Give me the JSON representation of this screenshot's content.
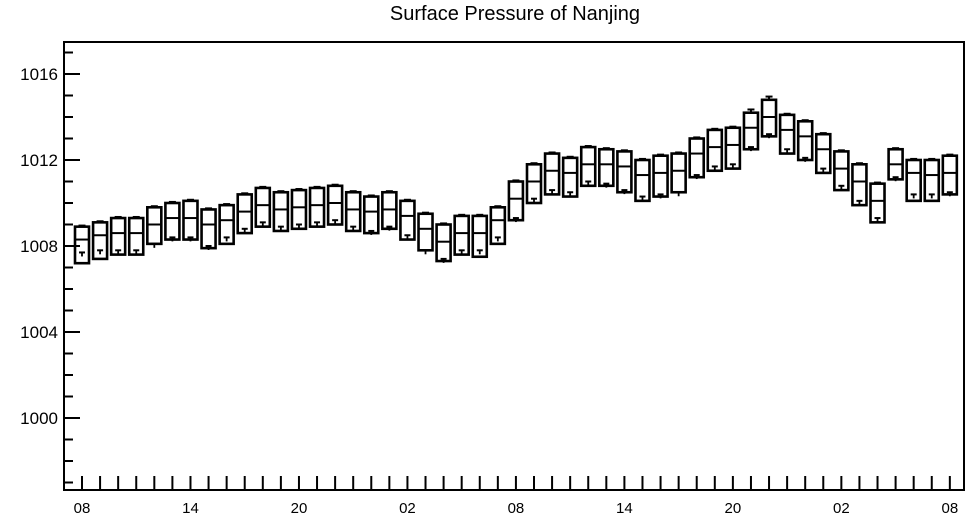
{
  "chart_data": {
    "type": "box",
    "title": "Surface Pressure of Nanjing",
    "xlabel": "",
    "ylabel": "",
    "ylim": [
      996.5,
      1017.5
    ],
    "yticks": [
      "1000",
      "1004",
      "1008",
      "1012",
      "1016"
    ],
    "xtick_labels": [
      "08",
      "14",
      "20",
      "02",
      "08",
      "14",
      "20",
      "02",
      "08"
    ],
    "xtick_label_index": [
      0,
      6,
      12,
      18,
      24,
      30,
      36,
      42,
      48
    ],
    "hours": [
      "08",
      "09",
      "10",
      "11",
      "12",
      "13",
      "14",
      "15",
      "16",
      "17",
      "18",
      "19",
      "20",
      "21",
      "22",
      "23",
      "00",
      "01",
      "02",
      "03",
      "04",
      "05",
      "06",
      "07",
      "08",
      "09",
      "10",
      "11",
      "12",
      "13",
      "14",
      "15",
      "16",
      "17",
      "18",
      "19",
      "20",
      "21",
      "22",
      "23",
      "00",
      "01",
      "02",
      "03",
      "04",
      "05",
      "06",
      "07",
      "08"
    ],
    "q75": [
      1008.9,
      1009.1,
      1009.3,
      1009.3,
      1009.8,
      1010.0,
      1010.1,
      1009.7,
      1009.9,
      1010.4,
      1010.7,
      1010.5,
      1010.6,
      1010.7,
      1010.8,
      1010.5,
      1010.3,
      1010.5,
      1010.1,
      1009.5,
      1009.0,
      1009.4,
      1009.4,
      1009.8,
      1011.0,
      1011.8,
      1012.3,
      1012.1,
      1012.6,
      1012.5,
      1012.4,
      1012.0,
      1012.2,
      1012.3,
      1013.0,
      1013.4,
      1013.5,
      1014.2,
      1014.8,
      1014.1,
      1013.8,
      1013.2,
      1012.4,
      1011.8,
      1010.9,
      1012.5,
      1012.0,
      1012.0,
      1012.2
    ],
    "median": [
      1008.3,
      1008.5,
      1008.6,
      1008.6,
      1009.0,
      1009.3,
      1009.3,
      1009.0,
      1009.2,
      1009.6,
      1009.9,
      1009.7,
      1009.8,
      1009.9,
      1010.0,
      1009.7,
      1009.6,
      1009.7,
      1009.4,
      1008.8,
      1008.2,
      1008.6,
      1008.6,
      1009.2,
      1010.2,
      1011.0,
      1011.5,
      1011.4,
      1011.8,
      1011.8,
      1011.7,
      1011.3,
      1011.4,
      1011.5,
      1012.3,
      1012.6,
      1012.7,
      1013.5,
      1014.0,
      1013.4,
      1013.1,
      1012.5,
      1011.6,
      1011.0,
      1010.1,
      1011.8,
      1011.4,
      1011.3,
      1011.4
    ],
    "q25": [
      1007.2,
      1007.4,
      1007.6,
      1007.6,
      1008.1,
      1008.3,
      1008.3,
      1007.9,
      1008.1,
      1008.6,
      1008.9,
      1008.7,
      1008.8,
      1008.9,
      1009.0,
      1008.7,
      1008.6,
      1008.8,
      1008.3,
      1007.8,
      1007.3,
      1007.6,
      1007.5,
      1008.1,
      1009.2,
      1010.0,
      1010.4,
      1010.3,
      1010.8,
      1010.8,
      1010.5,
      1010.1,
      1010.3,
      1010.5,
      1011.2,
      1011.5,
      1011.6,
      1012.5,
      1013.1,
      1012.3,
      1012.0,
      1011.4,
      1010.6,
      1009.9,
      1009.1,
      1011.1,
      1010.1,
      1010.1,
      1010.4
    ],
    "mean": [
      1007.7,
      1007.8,
      1007.8,
      1007.8,
      1008.1,
      1008.4,
      1008.4,
      1008.0,
      1008.4,
      1008.8,
      1009.1,
      1008.9,
      1009.0,
      1009.1,
      1009.2,
      1008.9,
      1008.7,
      1008.9,
      1008.5,
      1007.8,
      1007.4,
      1007.8,
      1007.8,
      1008.4,
      1009.3,
      1010.2,
      1010.6,
      1010.5,
      1011.0,
      1010.9,
      1010.6,
      1010.3,
      1010.4,
      1010.5,
      1011.3,
      1011.7,
      1011.8,
      1012.6,
      1013.2,
      1012.5,
      1012.1,
      1011.6,
      1010.8,
      1010.1,
      1009.3,
      1011.2,
      1010.4,
      1010.4,
      1010.5
    ],
    "whisker_top": [
      1008.95,
      1009.15,
      1009.35,
      1009.35,
      1009.85,
      1010.05,
      1010.15,
      1009.75,
      1009.95,
      1010.45,
      1010.75,
      1010.55,
      1010.65,
      1010.75,
      1010.85,
      1010.55,
      1010.35,
      1010.55,
      1010.15,
      1009.55,
      1009.05,
      1009.45,
      1009.45,
      1009.85,
      1011.05,
      1011.85,
      1012.35,
      1012.15,
      1012.65,
      1012.55,
      1012.45,
      1012.05,
      1012.25,
      1012.35,
      1013.05,
      1013.45,
      1013.55,
      1014.35,
      1014.95,
      1014.15,
      1013.85,
      1013.25,
      1012.45,
      1011.85,
      1010.95,
      1012.55,
      1012.05,
      1012.05,
      1012.25
    ]
  }
}
